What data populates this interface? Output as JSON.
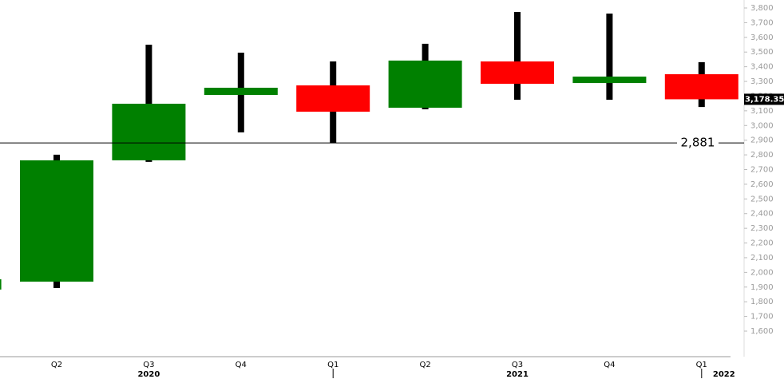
{
  "chart_data": {
    "type": "candlestick",
    "categories": [
      null,
      "Q2",
      "Q3",
      "Q4",
      "Q1",
      "Q2",
      "Q3",
      "Q4",
      "Q1"
    ],
    "open": [
      1883,
      1937,
      2763,
      3208,
      3273,
      3121,
      3436,
      3289,
      3349
    ],
    "high": [
      1953,
      2801,
      3550,
      3496,
      3436,
      3556,
      3773,
      3762,
      3431
    ],
    "low": [
      1883,
      1893,
      2752,
      2953,
      2882,
      3110,
      3175,
      3175,
      3126
    ],
    "close": [
      1953,
      2763,
      3148,
      3257,
      3094,
      3442,
      3284,
      3333,
      3178.35
    ],
    "up_color": "#008000",
    "down_color": "#ff0000",
    "wick_color": "#000000",
    "years": [
      {
        "label": "2020",
        "category": 2
      },
      {
        "label": "2021",
        "category": 6
      },
      {
        "label": "2022",
        "category": 8
      }
    ],
    "ylim": [
      1550,
      3820
    ],
    "yticks": [
      {
        "value": 1600,
        "label": "1,600"
      },
      {
        "value": 1700,
        "label": "1,700"
      },
      {
        "value": 1800,
        "label": "1,800"
      },
      {
        "value": 1900,
        "label": "1,900"
      },
      {
        "value": 2000,
        "label": "2,000"
      },
      {
        "value": 2100,
        "label": "2,100"
      },
      {
        "value": 2200,
        "label": "2,200"
      },
      {
        "value": 2300,
        "label": "2,300"
      },
      {
        "value": 2400,
        "label": "2,400"
      },
      {
        "value": 2500,
        "label": "2,500"
      },
      {
        "value": 2600,
        "label": "2,600"
      },
      {
        "value": 2700,
        "label": "2,700"
      },
      {
        "value": 2800,
        "label": "2,800"
      },
      {
        "value": 2900,
        "label": "2,900"
      },
      {
        "value": 3000,
        "label": "3,000"
      },
      {
        "value": 3100,
        "label": "3,100"
      },
      {
        "value": 3200,
        "label": "3,200"
      },
      {
        "value": 3300,
        "label": "3,300"
      },
      {
        "value": 3400,
        "label": "3,400"
      },
      {
        "value": 3500,
        "label": "3,500"
      },
      {
        "value": 3600,
        "label": "3,600"
      },
      {
        "value": 3700,
        "label": "3,700"
      },
      {
        "value": 3800,
        "label": "3,800"
      }
    ],
    "reference_line": {
      "value": 2881,
      "label": "2,881"
    },
    "last_price": {
      "value": 3178.35,
      "label": "3,178.35"
    }
  }
}
